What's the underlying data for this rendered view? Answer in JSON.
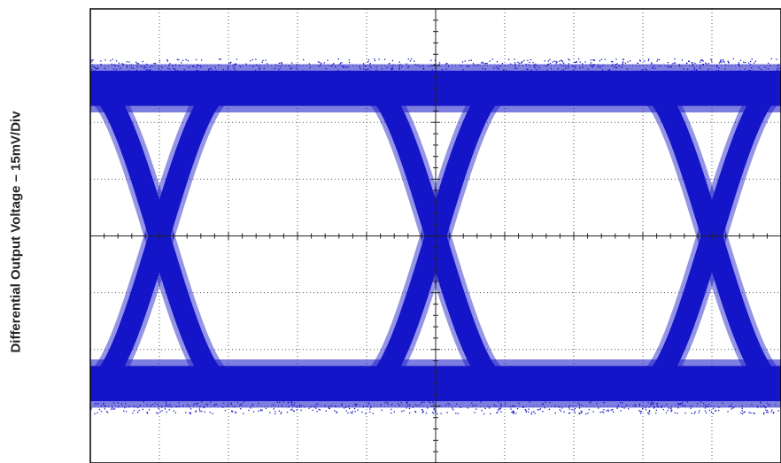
{
  "chart_data": {
    "type": "eye-diagram",
    "title": "",
    "xlabel": "",
    "ylabel": "Differential Output Voltage – 15mV/Div",
    "y_scale_per_div": "15mV/Div",
    "grid": true,
    "grid_divisions": {
      "x": 10,
      "y": 8
    },
    "trace_color": "#1414c8",
    "background_color": "#ffffff",
    "crossing_points_div": [
      1,
      5,
      9
    ],
    "levels_div": {
      "high": 2.6,
      "low": -2.6
    }
  }
}
